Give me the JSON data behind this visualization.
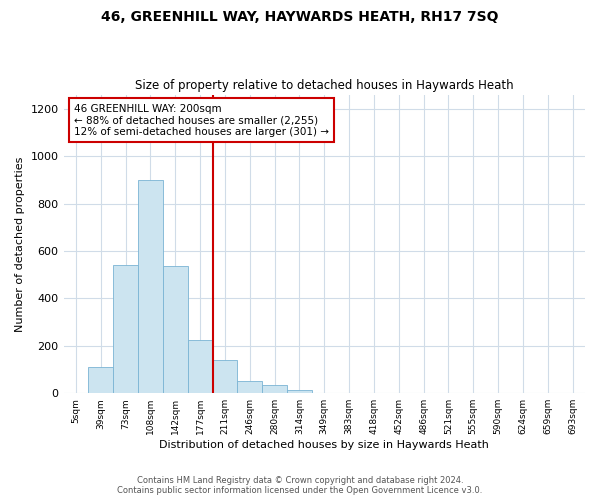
{
  "title": "46, GREENHILL WAY, HAYWARDS HEATH, RH17 7SQ",
  "subtitle": "Size of property relative to detached houses in Haywards Heath",
  "xlabel": "Distribution of detached houses by size in Haywards Heath",
  "ylabel": "Number of detached properties",
  "bar_labels": [
    "5sqm",
    "39sqm",
    "73sqm",
    "108sqm",
    "142sqm",
    "177sqm",
    "211sqm",
    "246sqm",
    "280sqm",
    "314sqm",
    "349sqm",
    "383sqm",
    "418sqm",
    "452sqm",
    "486sqm",
    "521sqm",
    "555sqm",
    "590sqm",
    "624sqm",
    "659sqm",
    "693sqm"
  ],
  "bar_values": [
    0,
    110,
    540,
    900,
    535,
    225,
    140,
    50,
    35,
    15,
    0,
    0,
    0,
    0,
    0,
    0,
    0,
    0,
    0,
    0,
    0
  ],
  "bar_color": "#cce4f0",
  "bar_edge_color": "#7ab4d4",
  "vline_x_idx": 6,
  "vline_color": "#cc0000",
  "ylim": [
    0,
    1260
  ],
  "yticks": [
    0,
    200,
    400,
    600,
    800,
    1000,
    1200
  ],
  "annotation_title": "46 GREENHILL WAY: 200sqm",
  "annotation_line1": "← 88% of detached houses are smaller (2,255)",
  "annotation_line2": "12% of semi-detached houses are larger (301) →",
  "footer1": "Contains HM Land Registry data © Crown copyright and database right 2024.",
  "footer2": "Contains public sector information licensed under the Open Government Licence v3.0.",
  "bg_color": "#ffffff",
  "grid_color": "#d0dce8"
}
